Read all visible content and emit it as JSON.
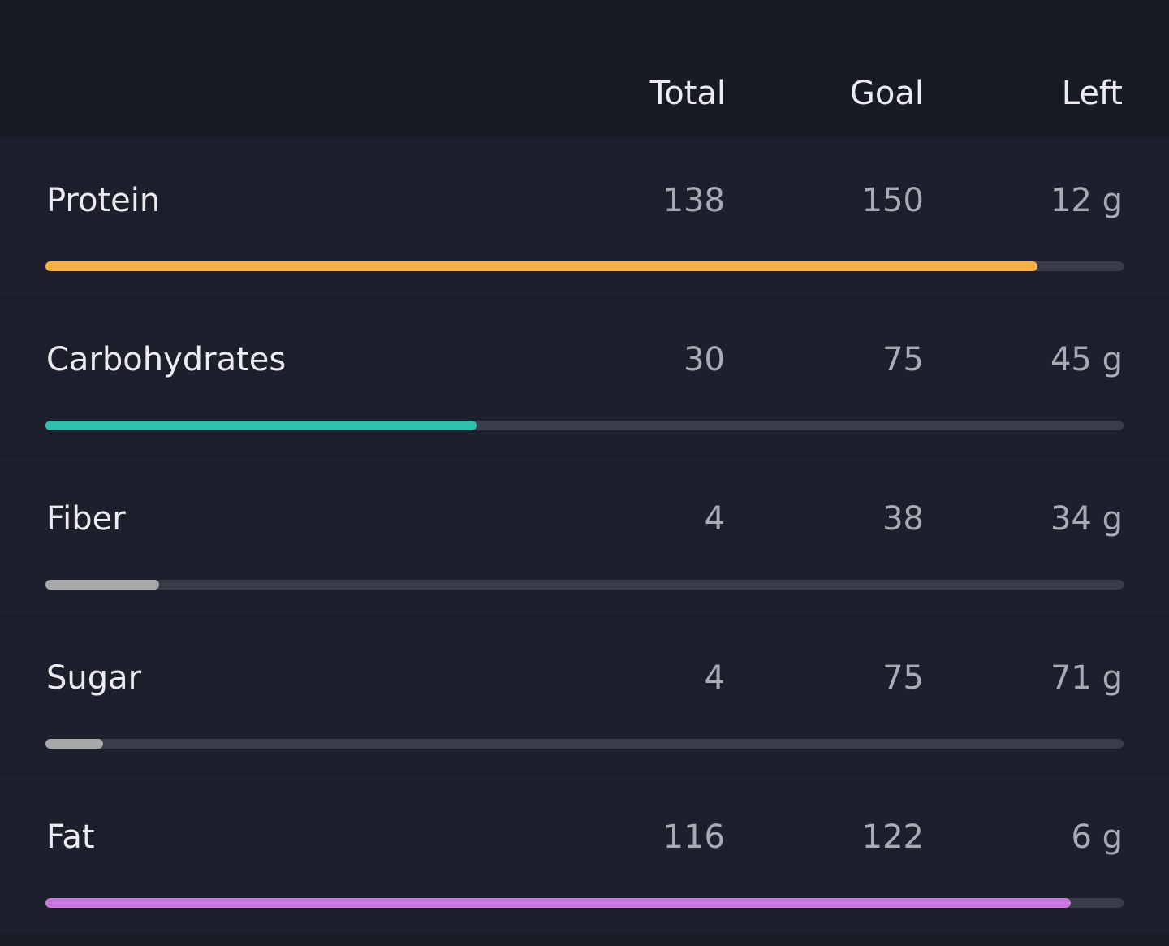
{
  "header": {
    "columns": [
      "Total",
      "Goal",
      "Left"
    ]
  },
  "rows": [
    {
      "name": "Protein",
      "total": 138,
      "goal": 150,
      "left": "12 g",
      "color": "#f8b043"
    },
    {
      "name": "Carbohydrates",
      "total": 30,
      "goal": 75,
      "left": "45 g",
      "color": "#2fbfae"
    },
    {
      "name": "Fiber",
      "total": 4,
      "goal": 38,
      "left": "34 g",
      "color": "#a9a9ab"
    },
    {
      "name": "Sugar",
      "total": 4,
      "goal": 75,
      "left": "71 g",
      "color": "#a9a9ab"
    },
    {
      "name": "Fat",
      "total": 116,
      "goal": 122,
      "left": "6 g",
      "color": "#c77ade"
    }
  ]
}
